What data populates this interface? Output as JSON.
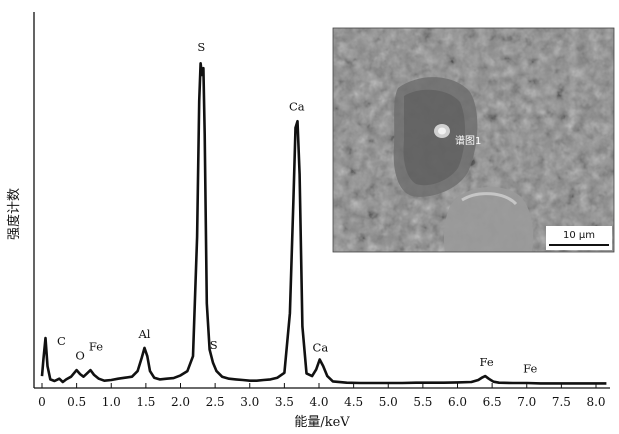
{
  "chart_data": {
    "type": "line",
    "xlabel": "能量/keV",
    "ylabel": "强度计数",
    "title": "",
    "xlim": [
      -0.1,
      8.25
    ],
    "ylim": [
      0,
      1000
    ],
    "x_ticks": [
      "0",
      "0.5",
      "1.0",
      "1.5",
      "2.0",
      "2.5",
      "3.0",
      "3.5",
      "4.0",
      "4.5",
      "5.0",
      "5.5",
      "6.0",
      "6.5",
      "7.0",
      "7.5",
      "8.0"
    ],
    "grid": false,
    "series": [
      {
        "x": [
          0.0,
          0.02,
          0.05,
          0.08,
          0.12,
          0.18,
          0.25,
          0.3,
          0.35,
          0.42,
          0.5,
          0.55,
          0.6,
          0.65,
          0.7,
          0.75,
          0.82,
          0.9,
          1.0,
          1.1,
          1.2,
          1.3,
          1.38,
          1.44,
          1.48,
          1.52,
          1.56,
          1.62,
          1.7,
          1.8,
          1.9,
          2.0,
          2.1,
          2.18,
          2.24,
          2.27,
          2.29,
          2.31,
          2.33,
          2.35,
          2.38,
          2.42,
          2.47,
          2.52,
          2.6,
          2.7,
          2.8,
          2.9,
          3.0,
          3.1,
          3.2,
          3.3,
          3.4,
          3.5,
          3.58,
          3.63,
          3.66,
          3.69,
          3.72,
          3.76,
          3.82,
          3.9,
          3.96,
          4.01,
          4.06,
          4.12,
          4.2,
          4.4,
          4.6,
          4.8,
          5.0,
          5.2,
          5.4,
          5.6,
          5.8,
          6.0,
          6.2,
          6.3,
          6.36,
          6.4,
          6.45,
          6.52,
          6.6,
          6.8,
          7.0,
          7.2,
          7.4,
          7.6,
          7.8,
          8.0,
          8.15
        ],
        "y": [
          30,
          80,
          145,
          60,
          20,
          15,
          22,
          12,
          20,
          28,
          48,
          36,
          28,
          38,
          48,
          34,
          22,
          16,
          18,
          22,
          25,
          28,
          45,
          85,
          115,
          90,
          45,
          25,
          20,
          22,
          24,
          32,
          45,
          90,
          450,
          860,
          975,
          940,
          960,
          760,
          250,
          110,
          70,
          45,
          28,
          22,
          20,
          18,
          16,
          16,
          18,
          20,
          25,
          40,
          220,
          560,
          780,
          800,
          640,
          180,
          38,
          30,
          50,
          80,
          60,
          30,
          14,
          10,
          9,
          9,
          9,
          9,
          10,
          10,
          10,
          11,
          12,
          18,
          26,
          30,
          22,
          13,
          10,
          9,
          9,
          8,
          8,
          8,
          8,
          8,
          8
        ]
      }
    ],
    "peak_labels": [
      {
        "text": "C",
        "x": 0.28,
        "y": 112
      },
      {
        "text": "O",
        "x": 0.55,
        "y": 68
      },
      {
        "text": "Fe",
        "x": 0.78,
        "y": 95
      },
      {
        "text": "Al",
        "x": 1.48,
        "y": 133
      },
      {
        "text": "S",
        "x": 2.3,
        "y": 1000
      },
      {
        "text": "S",
        "x": 2.48,
        "y": 100
      },
      {
        "text": "Ca",
        "x": 3.68,
        "y": 820
      },
      {
        "text": "Ca",
        "x": 4.02,
        "y": 92
      },
      {
        "text": "Fe",
        "x": 6.42,
        "y": 48
      },
      {
        "text": "Fe",
        "x": 7.05,
        "y": 28
      }
    ]
  },
  "inset": {
    "spectrum_label": "谱图1",
    "scale_bar_label": "10 μm",
    "colors": {
      "dark": "#2f2f2f",
      "mid": "#7d7d7d",
      "light": "#c8c8c8"
    }
  }
}
